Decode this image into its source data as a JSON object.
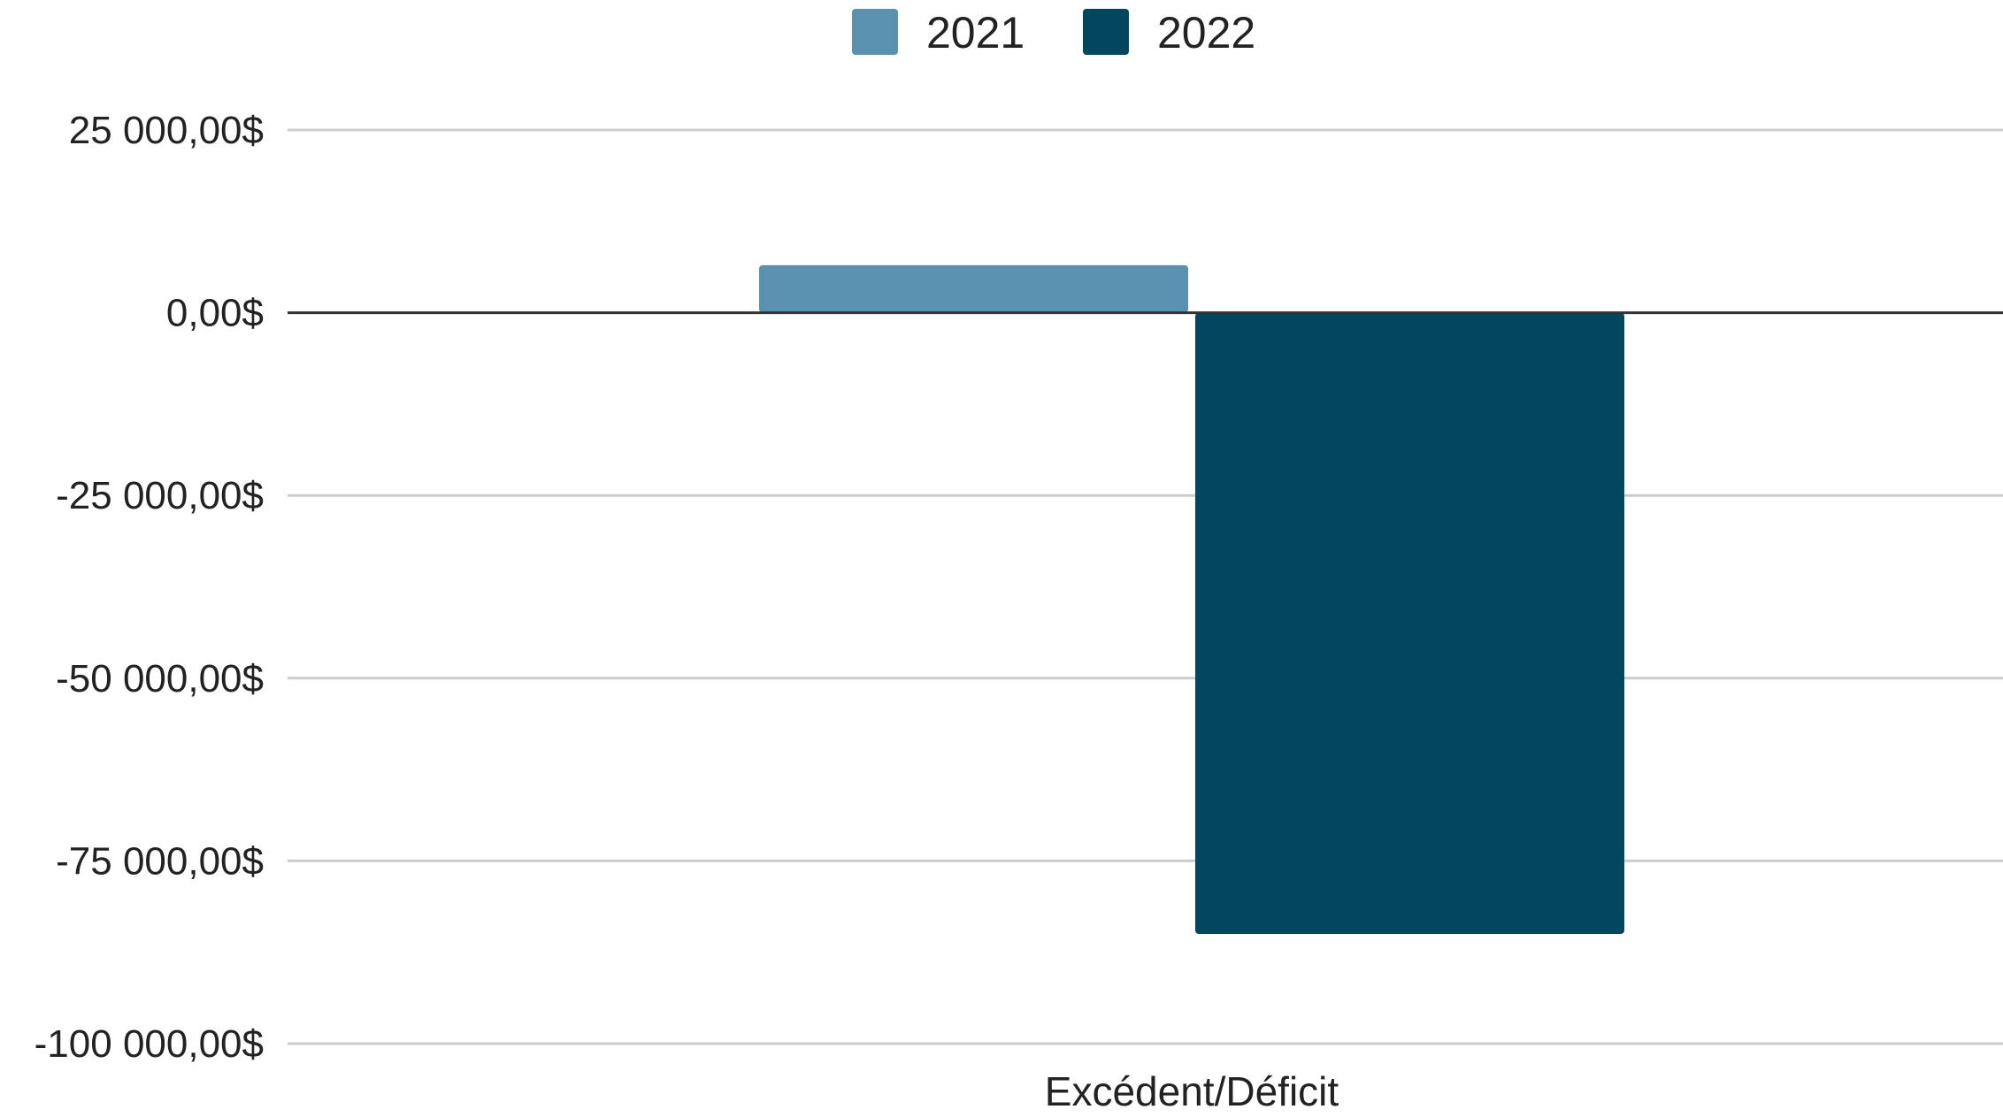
{
  "chart_data": {
    "type": "bar",
    "categories": [
      "Excédent/Déficit"
    ],
    "series": [
      {
        "name": "2021",
        "values": [
          6500
        ],
        "color": "#5b91b0"
      },
      {
        "name": "2022",
        "values": [
          -85000
        ],
        "color": "#03465f"
      }
    ],
    "ylim": [
      -100000,
      25000
    ],
    "yticks": [
      {
        "value": 25000,
        "label": "25 000,00$"
      },
      {
        "value": 0,
        "label": "0,00$"
      },
      {
        "value": -25000,
        "label": "-25 000,00$"
      },
      {
        "value": -50000,
        "label": "-50 000,00$"
      },
      {
        "value": -75000,
        "label": "-75 000,00$"
      },
      {
        "value": -100000,
        "label": "-100 000,00$"
      }
    ],
    "legend_position": "top-center",
    "grid": true,
    "title": "",
    "xlabel": "",
    "ylabel": ""
  }
}
